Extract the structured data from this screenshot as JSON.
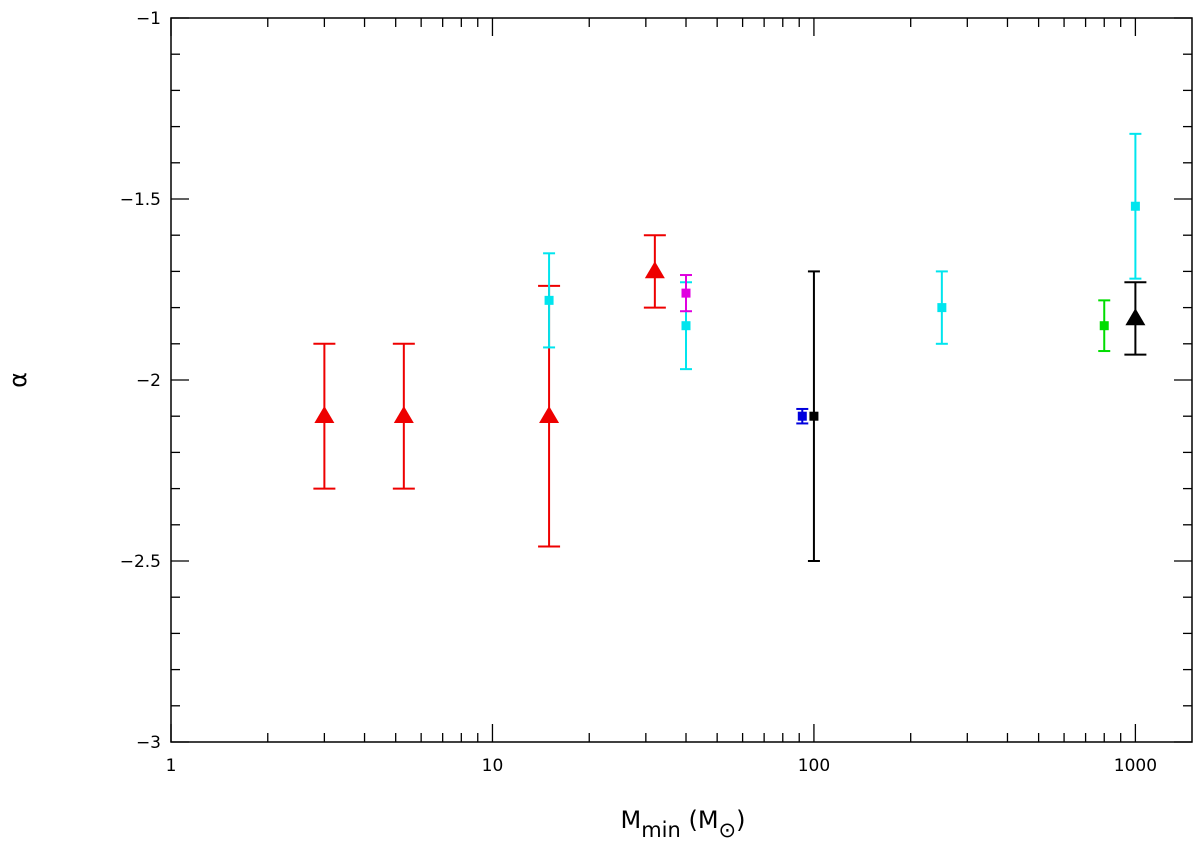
{
  "chart_data": {
    "type": "scatter",
    "title": "",
    "xlabel": {
      "main": "M",
      "sub": "min",
      "unit_main": "M",
      "unit_symbol": "⊙"
    },
    "ylabel": "α",
    "xscale": "log",
    "xlim": [
      1,
      1500
    ],
    "ylim": [
      -3,
      -1
    ],
    "x_ticks": [
      1,
      10,
      100,
      1000
    ],
    "y_ticks": [
      -3,
      -2.5,
      -2,
      -1.5,
      -1
    ],
    "x_tick_labels": [
      "1",
      "10",
      "100",
      "1000"
    ],
    "y_tick_labels": [
      "−3",
      "−2.5",
      "−2",
      "−1.5",
      "−1"
    ],
    "grid": false,
    "series": [
      {
        "color": "#ee0000",
        "marker": "triangle",
        "points": [
          {
            "x": 3.0,
            "y": -2.1,
            "ylo": -2.3,
            "yhi": -1.9
          },
          {
            "x": 5.3,
            "y": -2.1,
            "ylo": -2.3,
            "yhi": -1.9
          },
          {
            "x": 15.0,
            "y": -2.1,
            "ylo": -2.46,
            "yhi": -1.74
          },
          {
            "x": 32.0,
            "y": -1.7,
            "ylo": -1.8,
            "yhi": -1.6
          }
        ]
      },
      {
        "color": "#00e5ee",
        "marker": "square",
        "points": [
          {
            "x": 15.0,
            "y": -1.78,
            "ylo": -1.91,
            "yhi": -1.65
          },
          {
            "x": 40.0,
            "y": -1.85,
            "ylo": -1.97,
            "yhi": -1.73
          },
          {
            "x": 250.0,
            "y": -1.8,
            "ylo": -1.9,
            "yhi": -1.7
          },
          {
            "x": 1000.0,
            "y": -1.52,
            "ylo": -1.72,
            "yhi": -1.32
          }
        ]
      },
      {
        "color": "#e000e0",
        "marker": "square",
        "points": [
          {
            "x": 40.0,
            "y": -1.76,
            "ylo": -1.81,
            "yhi": -1.71
          }
        ]
      },
      {
        "color": "#0000dd",
        "marker": "square",
        "points": [
          {
            "x": 92.0,
            "y": -2.1,
            "ylo": -2.12,
            "yhi": -2.08
          }
        ]
      },
      {
        "color": "#000000",
        "marker": "square",
        "points": [
          {
            "x": 100.0,
            "y": -2.1,
            "ylo": -2.5,
            "yhi": -1.7
          }
        ]
      },
      {
        "color": "#00dd00",
        "marker": "square",
        "points": [
          {
            "x": 800.0,
            "y": -1.85,
            "ylo": -1.92,
            "yhi": -1.78
          }
        ]
      },
      {
        "color": "#000000",
        "marker": "triangle",
        "points": [
          {
            "x": 1000.0,
            "y": -1.83,
            "ylo": -1.93,
            "yhi": -1.73
          }
        ]
      }
    ]
  }
}
